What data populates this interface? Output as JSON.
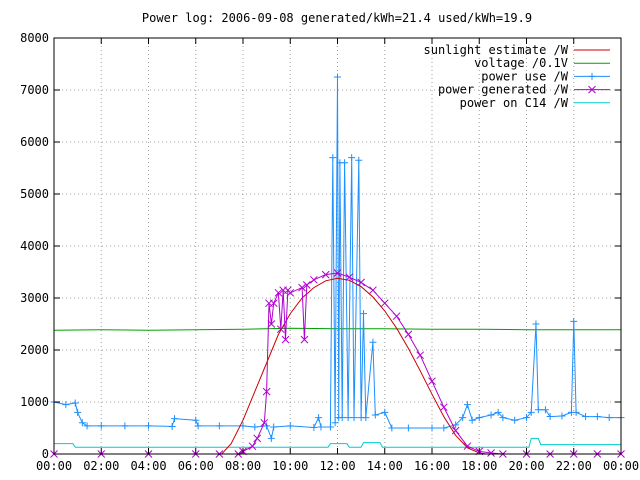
{
  "chart_data": {
    "type": "line",
    "title": "Power log: 2006-09-08 generated/kWh=21.4 used/kWh=19.9",
    "xlabel": "",
    "ylabel": "",
    "x_range": [
      "00:00",
      "24:00"
    ],
    "ylim": [
      0,
      8000
    ],
    "x_ticks": [
      "00:00",
      "02:00",
      "04:00",
      "06:00",
      "08:00",
      "10:00",
      "12:00",
      "14:00",
      "16:00",
      "18:00",
      "20:00",
      "22:00",
      "00:00"
    ],
    "y_ticks": [
      "0",
      "1000",
      "2000",
      "3000",
      "4000",
      "5000",
      "6000",
      "7000",
      "8000"
    ],
    "grid": true,
    "legend_position": "top-right",
    "colors": {
      "sunlight": "#cc0000",
      "voltage": "#00a000",
      "use": "#1e90ff",
      "generated": "#b000d0",
      "c14": "#00cccc"
    },
    "series": [
      {
        "name": "sunlight estimate /W",
        "marker": "none",
        "points": [
          [
            0,
            0
          ],
          [
            7.1,
            0
          ],
          [
            7.5,
            200
          ],
          [
            8,
            650
          ],
          [
            8.5,
            1200
          ],
          [
            9,
            1750
          ],
          [
            9.5,
            2300
          ],
          [
            10,
            2700
          ],
          [
            10.5,
            3000
          ],
          [
            11,
            3200
          ],
          [
            11.5,
            3330
          ],
          [
            12,
            3380
          ],
          [
            12.5,
            3340
          ],
          [
            13,
            3220
          ],
          [
            13.5,
            3020
          ],
          [
            14,
            2750
          ],
          [
            14.5,
            2420
          ],
          [
            15,
            2030
          ],
          [
            15.5,
            1600
          ],
          [
            16,
            1150
          ],
          [
            16.5,
            720
          ],
          [
            17,
            360
          ],
          [
            17.5,
            120
          ],
          [
            18,
            20
          ],
          [
            18.3,
            0
          ],
          [
            24,
            0
          ]
        ]
      },
      {
        "name": "voltage /0.1V",
        "marker": "none",
        "points": [
          [
            0,
            2380
          ],
          [
            2,
            2390
          ],
          [
            4,
            2380
          ],
          [
            6,
            2390
          ],
          [
            8,
            2400
          ],
          [
            10,
            2420
          ],
          [
            12,
            2410
          ],
          [
            14,
            2410
          ],
          [
            16,
            2400
          ],
          [
            18,
            2400
          ],
          [
            20,
            2390
          ],
          [
            22,
            2390
          ],
          [
            24,
            2390
          ]
        ]
      },
      {
        "name": "power use /W",
        "marker": "plus",
        "points": [
          [
            0,
            1000
          ],
          [
            0.5,
            950
          ],
          [
            0.9,
            980
          ],
          [
            1,
            800
          ],
          [
            1.2,
            600
          ],
          [
            1.4,
            540
          ],
          [
            2,
            540
          ],
          [
            3,
            540
          ],
          [
            4,
            540
          ],
          [
            5,
            530
          ],
          [
            5.1,
            680
          ],
          [
            6,
            650
          ],
          [
            6.1,
            540
          ],
          [
            7,
            540
          ],
          [
            8,
            540
          ],
          [
            8.5,
            520
          ],
          [
            9,
            540
          ],
          [
            9.2,
            300
          ],
          [
            9.3,
            520
          ],
          [
            10,
            540
          ],
          [
            11,
            510
          ],
          [
            11.2,
            700
          ],
          [
            11.3,
            520
          ],
          [
            11.7,
            520
          ],
          [
            11.8,
            5700
          ],
          [
            11.9,
            600
          ],
          [
            12,
            7250
          ],
          [
            12.05,
            700
          ],
          [
            12.1,
            5600
          ],
          [
            12.2,
            700
          ],
          [
            12.3,
            5600
          ],
          [
            12.45,
            700
          ],
          [
            12.6,
            5700
          ],
          [
            12.7,
            700
          ],
          [
            12.9,
            5650
          ],
          [
            13,
            700
          ],
          [
            13.1,
            2700
          ],
          [
            13.2,
            700
          ],
          [
            13.5,
            2150
          ],
          [
            13.6,
            750
          ],
          [
            14,
            800
          ],
          [
            14.3,
            500
          ],
          [
            15,
            500
          ],
          [
            16,
            500
          ],
          [
            16.5,
            500
          ],
          [
            17,
            560
          ],
          [
            17.3,
            700
          ],
          [
            17.5,
            950
          ],
          [
            17.7,
            650
          ],
          [
            18,
            700
          ],
          [
            18.5,
            750
          ],
          [
            18.8,
            800
          ],
          [
            19,
            700
          ],
          [
            19.5,
            650
          ],
          [
            20,
            700
          ],
          [
            20.2,
            800
          ],
          [
            20.4,
            2500
          ],
          [
            20.5,
            850
          ],
          [
            20.8,
            850
          ],
          [
            21,
            720
          ],
          [
            21.5,
            730
          ],
          [
            21.9,
            800
          ],
          [
            22,
            2550
          ],
          [
            22.1,
            800
          ],
          [
            22.5,
            720
          ],
          [
            23,
            720
          ],
          [
            23.5,
            700
          ],
          [
            24,
            700
          ]
        ]
      },
      {
        "name": "power generated /W",
        "marker": "cross",
        "points": [
          [
            0,
            0
          ],
          [
            2,
            0
          ],
          [
            4,
            0
          ],
          [
            6,
            0
          ],
          [
            7,
            0
          ],
          [
            7.8,
            0
          ],
          [
            8,
            50
          ],
          [
            8.4,
            150
          ],
          [
            8.6,
            300
          ],
          [
            8.9,
            600
          ],
          [
            9,
            1200
          ],
          [
            9.1,
            2900
          ],
          [
            9.2,
            2500
          ],
          [
            9.3,
            2900
          ],
          [
            9.5,
            3100
          ],
          [
            9.6,
            2400
          ],
          [
            9.7,
            3150
          ],
          [
            9.8,
            2200
          ],
          [
            9.9,
            3150
          ],
          [
            10,
            3100
          ],
          [
            10.5,
            3200
          ],
          [
            10.6,
            2200
          ],
          [
            10.7,
            3250
          ],
          [
            11,
            3350
          ],
          [
            11.5,
            3450
          ],
          [
            12,
            3480
          ],
          [
            12.5,
            3400
          ],
          [
            13,
            3300
          ],
          [
            13.5,
            3150
          ],
          [
            14,
            2900
          ],
          [
            14.5,
            2650
          ],
          [
            15,
            2300
          ],
          [
            15.5,
            1900
          ],
          [
            16,
            1400
          ],
          [
            16.5,
            900
          ],
          [
            17,
            450
          ],
          [
            17.5,
            150
          ],
          [
            18,
            50
          ],
          [
            18.5,
            20
          ],
          [
            19,
            0
          ],
          [
            20,
            0
          ],
          [
            21,
            0
          ],
          [
            22,
            0
          ],
          [
            23,
            0
          ],
          [
            24,
            0
          ]
        ]
      },
      {
        "name": "power on C14 /W",
        "marker": "none",
        "points": [
          [
            0,
            200
          ],
          [
            0.8,
            200
          ],
          [
            0.9,
            130
          ],
          [
            7,
            130
          ],
          [
            11.6,
            130
          ],
          [
            11.7,
            200
          ],
          [
            12.4,
            200
          ],
          [
            12.5,
            130
          ],
          [
            13,
            130
          ],
          [
            13.1,
            220
          ],
          [
            13.8,
            220
          ],
          [
            13.9,
            130
          ],
          [
            20.1,
            130
          ],
          [
            20.2,
            300
          ],
          [
            20.5,
            300
          ],
          [
            20.6,
            180
          ],
          [
            24,
            180
          ]
        ]
      }
    ]
  }
}
